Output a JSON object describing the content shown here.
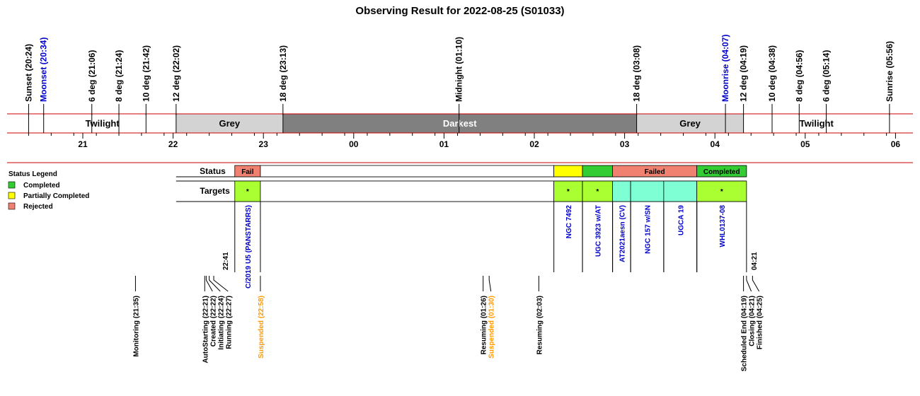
{
  "chart_data": {
    "type": "timeline",
    "title": "Observing Result for 2022-08-25 (S01033)",
    "axis": {
      "start": "20:24",
      "end": "06:06",
      "ticks": [
        {
          "label": "21",
          "time": "21:00"
        },
        {
          "label": "22",
          "time": "22:00"
        },
        {
          "label": "23",
          "time": "23:00"
        },
        {
          "label": "00",
          "time": "00:00"
        },
        {
          "label": "01",
          "time": "01:00"
        },
        {
          "label": "02",
          "time": "02:00"
        },
        {
          "label": "03",
          "time": "03:00"
        },
        {
          "label": "04",
          "time": "04:00"
        },
        {
          "label": "05",
          "time": "05:00"
        },
        {
          "label": "06",
          "time": "06:00"
        }
      ]
    },
    "sky_events": [
      {
        "label": "Sunset (20:24)",
        "time": "20:24",
        "color": "#000000"
      },
      {
        "label": "Moonset (20:34)",
        "time": "20:34",
        "color": "#0000cc"
      },
      {
        "label": "6 deg (21:06)",
        "time": "21:06",
        "color": "#000000"
      },
      {
        "label": "8 deg (21:24)",
        "time": "21:24",
        "color": "#000000"
      },
      {
        "label": "10 deg (21:42)",
        "time": "21:42",
        "color": "#000000"
      },
      {
        "label": "12 deg (22:02)",
        "time": "22:02",
        "color": "#000000"
      },
      {
        "label": "18 deg (23:13)",
        "time": "23:13",
        "color": "#000000"
      },
      {
        "label": "Midnight (01:10)",
        "time": "01:10",
        "color": "#000000"
      },
      {
        "label": "18 deg (03:08)",
        "time": "03:08",
        "color": "#000000"
      },
      {
        "label": "Moonrise (04:07)",
        "time": "04:07",
        "color": "#0000cc"
      },
      {
        "label": "12 deg (04:19)",
        "time": "04:19",
        "color": "#000000"
      },
      {
        "label": "10 deg (04:38)",
        "time": "04:38",
        "color": "#000000"
      },
      {
        "label": "8 deg (04:56)",
        "time": "04:56",
        "color": "#000000"
      },
      {
        "label": "6 deg (05:14)",
        "time": "05:14",
        "color": "#000000"
      },
      {
        "label": "Sunrise (05:56)",
        "time": "05:56",
        "color": "#000000"
      }
    ],
    "bands": [
      {
        "label": "Twilight",
        "start": "20:24",
        "end": "22:02",
        "color": "#ffffff",
        "text_color": "#000000"
      },
      {
        "label": "Grey",
        "start": "22:02",
        "end": "23:13",
        "color": "#d3d3d3",
        "text_color": "#000000"
      },
      {
        "label": "Darkest",
        "start": "23:13",
        "end": "03:08",
        "color": "#808080",
        "text_color": "#ffffff"
      },
      {
        "label": "Grey",
        "start": "03:08",
        "end": "04:19",
        "color": "#d3d3d3",
        "text_color": "#000000"
      },
      {
        "label": "Twilight",
        "start": "04:19",
        "end": "05:56",
        "color": "#ffffff",
        "text_color": "#000000"
      }
    ],
    "legend": {
      "title": "Status Legend",
      "items": [
        {
          "label": "Completed",
          "color": "#33cc33"
        },
        {
          "label": "Partially Completed",
          "color": "#ffff00"
        },
        {
          "label": "Rejected",
          "color": "#f08070"
        }
      ]
    },
    "rows": {
      "status": "Status",
      "targets": "Targets"
    },
    "status_segments": [
      {
        "start": "22:41",
        "end": "22:58",
        "label": "Fail",
        "color": "#f08070"
      },
      {
        "start": "22:58",
        "end": "02:13",
        "label": "",
        "color": "#ffffff"
      },
      {
        "start": "02:13",
        "end": "02:32",
        "label": "",
        "color": "#ffff00"
      },
      {
        "start": "02:32",
        "end": "02:52",
        "label": "",
        "color": "#33cc33"
      },
      {
        "start": "02:52",
        "end": "03:48",
        "label": "Failed",
        "color": "#f08070"
      },
      {
        "start": "03:48",
        "end": "04:21",
        "label": "Completed",
        "color": "#33cc33"
      }
    ],
    "target_segments": [
      {
        "start": "22:41",
        "end": "22:58",
        "label": "C/2019 U5 (PANSTARRS)",
        "color": "#aaff33",
        "marker": "*"
      },
      {
        "start": "22:58",
        "end": "02:13",
        "label": "",
        "color": "#ffffff",
        "marker": ""
      },
      {
        "start": "02:13",
        "end": "02:32",
        "label": "NGC 7492",
        "color": "#aaff33",
        "marker": "*"
      },
      {
        "start": "02:32",
        "end": "02:52",
        "label": "UGC 3923  w/AT",
        "color": "#aaff33",
        "marker": "*"
      },
      {
        "start": "02:52",
        "end": "03:04",
        "label": "AT2021aesn (CV)",
        "color": "#7fffd4",
        "marker": ""
      },
      {
        "start": "03:04",
        "end": "03:26",
        "label": "NGC 157  w/SN",
        "color": "#7fffd4",
        "marker": ""
      },
      {
        "start": "03:26",
        "end": "03:48",
        "label": "UGCA 19",
        "color": "#7fffd4",
        "marker": ""
      },
      {
        "start": "03:48",
        "end": "04:21",
        "label": "WHL0137-08",
        "color": "#aaff33",
        "marker": "*"
      }
    ],
    "segment_times": [
      {
        "label": "22:41",
        "time": "22:41"
      },
      {
        "label": "04:21",
        "time": "04:21"
      }
    ],
    "process_events": [
      {
        "label": "Monitoring (21:35)",
        "time": "21:35",
        "color": "#000000"
      },
      {
        "label": "AutoStarting (22:21)",
        "time": "22:21",
        "color": "#000000"
      },
      {
        "label": "Created (22:22)",
        "time": "22:22",
        "color": "#000000"
      },
      {
        "label": "Initiating (22:24)",
        "time": "22:24",
        "color": "#000000"
      },
      {
        "label": "Running (22:27)",
        "time": "22:27",
        "color": "#000000"
      },
      {
        "label": "Suspended (22:58)",
        "time": "22:58",
        "color": "#ff9900"
      },
      {
        "label": "Resuming (01:26)",
        "time": "01:26",
        "color": "#000000"
      },
      {
        "label": "Suspended (01:30)",
        "time": "01:30",
        "color": "#ff9900"
      },
      {
        "label": "Resuming (02:03)",
        "time": "02:03",
        "color": "#000000"
      },
      {
        "label": "Scheduled End (04:19)",
        "time": "04:19",
        "color": "#000000"
      },
      {
        "label": "Closing (04:21)",
        "time": "04:21",
        "color": "#000000"
      },
      {
        "label": "Finished (04:25)",
        "time": "04:25",
        "color": "#000000"
      }
    ]
  }
}
